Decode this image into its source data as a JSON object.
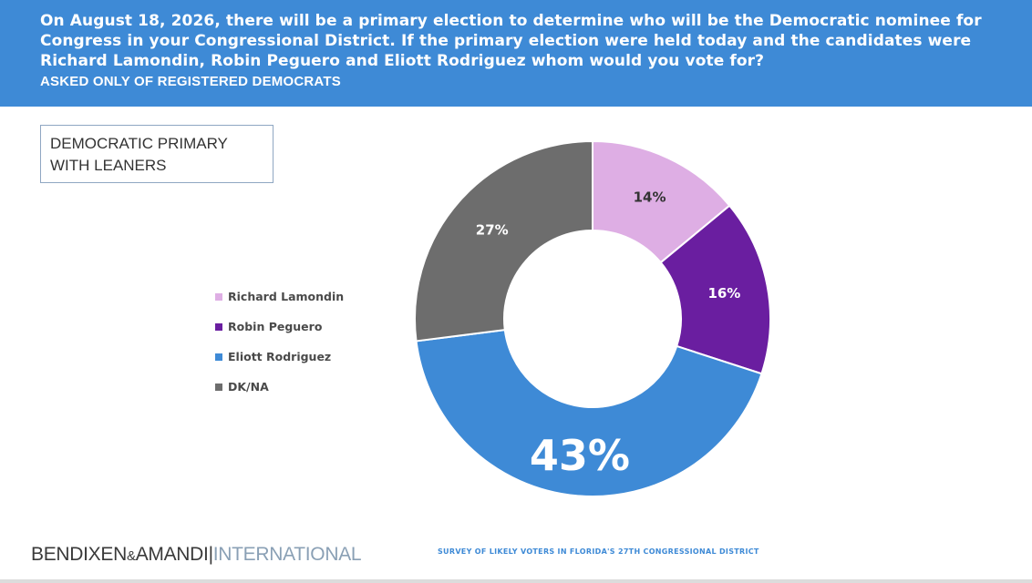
{
  "header": {
    "question": "On August 18, 2026, there will be a primary election to determine who will be the Democratic nominee for Congress in your Congressional District. If the primary election were held today and the candidates were Richard Lamondin, Robin Peguero and Eliott Rodriguez whom would you vote for?",
    "note": "ASKED ONLY OF REGISTERED DEMOCRATS"
  },
  "chart_title": {
    "line1": "DEMOCRATIC PRIMARY",
    "line2": "WITH LEANERS"
  },
  "chart_data": {
    "type": "pie",
    "donut": true,
    "categories": [
      "Richard Lamondin",
      "Robin Peguero",
      "Eliott Rodriguez",
      "DK/NA"
    ],
    "values": [
      14,
      16,
      43,
      27
    ],
    "labels": [
      "14%",
      "16%",
      "43%",
      "27%"
    ],
    "colors": [
      "#deaee4",
      "#6a1ea0",
      "#3e8ad6",
      "#6d6d6d"
    ],
    "label_colors": [
      "#333333",
      "#ffffff",
      "#ffffff",
      "#ffffff"
    ],
    "legend_position": "left"
  },
  "footer": {
    "brand_main": "BENDIXEN",
    "brand_amp": "&",
    "brand_second": "AMANDI",
    "brand_intl": "INTERNATIONAL",
    "survey": "SURVEY OF LIKELY VOTERS IN FLORIDA'S 27TH CONGRESSIONAL DISTRICT"
  }
}
